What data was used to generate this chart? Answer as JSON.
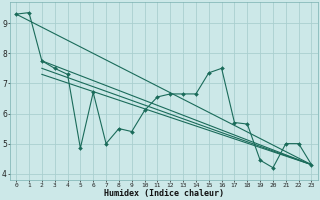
{
  "xlabel": "Humidex (Indice chaleur)",
  "bg_color": "#cce8e8",
  "grid_color": "#aacfcf",
  "line_color": "#1a6b5a",
  "xlim": [
    -0.5,
    23.5
  ],
  "ylim": [
    3.8,
    9.7
  ],
  "yticks": [
    4,
    5,
    6,
    7,
    8,
    9
  ],
  "xticks": [
    0,
    1,
    2,
    3,
    4,
    5,
    6,
    7,
    8,
    9,
    10,
    11,
    12,
    13,
    14,
    15,
    16,
    17,
    18,
    19,
    20,
    21,
    22,
    23
  ],
  "series": [
    {
      "x": [
        0,
        1,
        2,
        3,
        4,
        5,
        6,
        7,
        8,
        9,
        10,
        11,
        12,
        13,
        14,
        15,
        16,
        17,
        18,
        19,
        20,
        21,
        22,
        23
      ],
      "y": [
        9.3,
        9.35,
        7.75,
        7.5,
        7.3,
        4.85,
        6.7,
        5.0,
        5.5,
        5.4,
        6.1,
        6.55,
        6.65,
        6.65,
        6.65,
        7.35,
        7.5,
        5.7,
        5.65,
        4.45,
        4.2,
        5.0,
        5.0,
        4.3
      ]
    },
    {
      "x": [
        0,
        23
      ],
      "y": [
        9.3,
        4.3
      ]
    },
    {
      "x": [
        2,
        23
      ],
      "y": [
        7.75,
        4.3
      ]
    },
    {
      "x": [
        2,
        23
      ],
      "y": [
        7.5,
        4.3
      ]
    },
    {
      "x": [
        2,
        23
      ],
      "y": [
        7.3,
        4.3
      ]
    }
  ]
}
